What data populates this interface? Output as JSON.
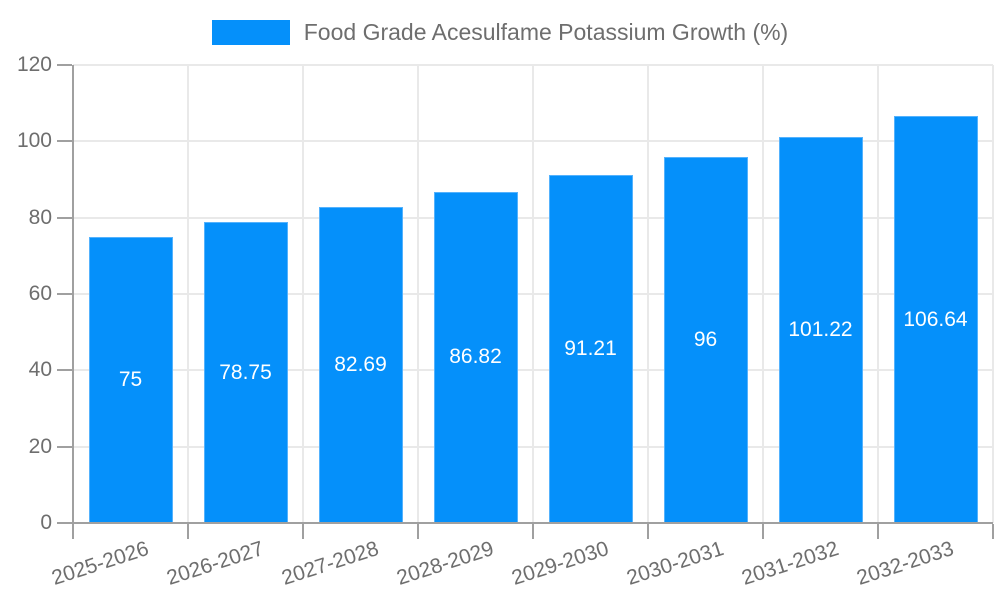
{
  "legend": {
    "label": "Food Grade Acesulfame Potassium Growth (%)"
  },
  "colors": {
    "bar": "#0590FA",
    "grid": "#e9e9e9",
    "axis": "#a0a0a0",
    "tick_text": "#6e6e6e",
    "value_label_text": "#ffffff"
  },
  "chart_data": {
    "type": "bar",
    "title": "",
    "series_name": "Food Grade Acesulfame Potassium Growth (%)",
    "categories": [
      "2025-2026",
      "2026-2027",
      "2027-2028",
      "2028-2029",
      "2029-2030",
      "2030-2031",
      "2031-2032",
      "2032-2033"
    ],
    "values": [
      75,
      78.75,
      82.69,
      86.82,
      91.21,
      96,
      101.22,
      106.64
    ],
    "value_labels": [
      "75",
      "78.75",
      "82.69",
      "86.82",
      "91.21",
      "96",
      "101.22",
      "106.64"
    ],
    "xlabel": "",
    "ylabel": "",
    "ylim": [
      0,
      120
    ],
    "y_ticks": [
      0,
      20,
      40,
      60,
      80,
      100,
      120
    ],
    "grid": true,
    "legend_position": "top"
  }
}
